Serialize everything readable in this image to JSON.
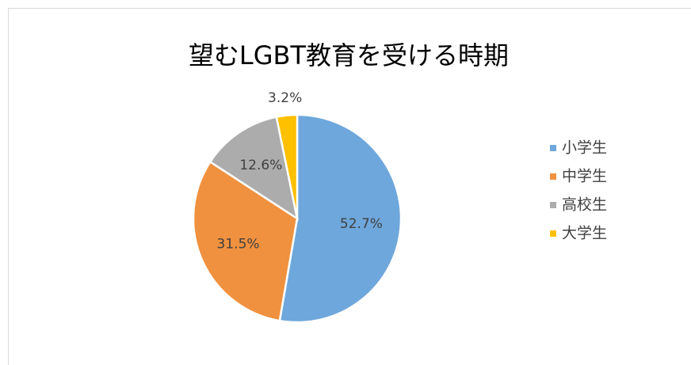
{
  "chart_data": {
    "type": "pie",
    "title": "望むLGBT教育を受ける時期",
    "categories": [
      "小学生",
      "中学生",
      "高校生",
      "大学生"
    ],
    "values": [
      52.7,
      31.5,
      12.6,
      3.2
    ],
    "value_labels": [
      "52.7%",
      "31.5%",
      "12.6%",
      "3.2%"
    ],
    "colors": [
      "#6ea7db",
      "#f0913f",
      "#acacac",
      "#ffc000"
    ],
    "legend": "right"
  }
}
